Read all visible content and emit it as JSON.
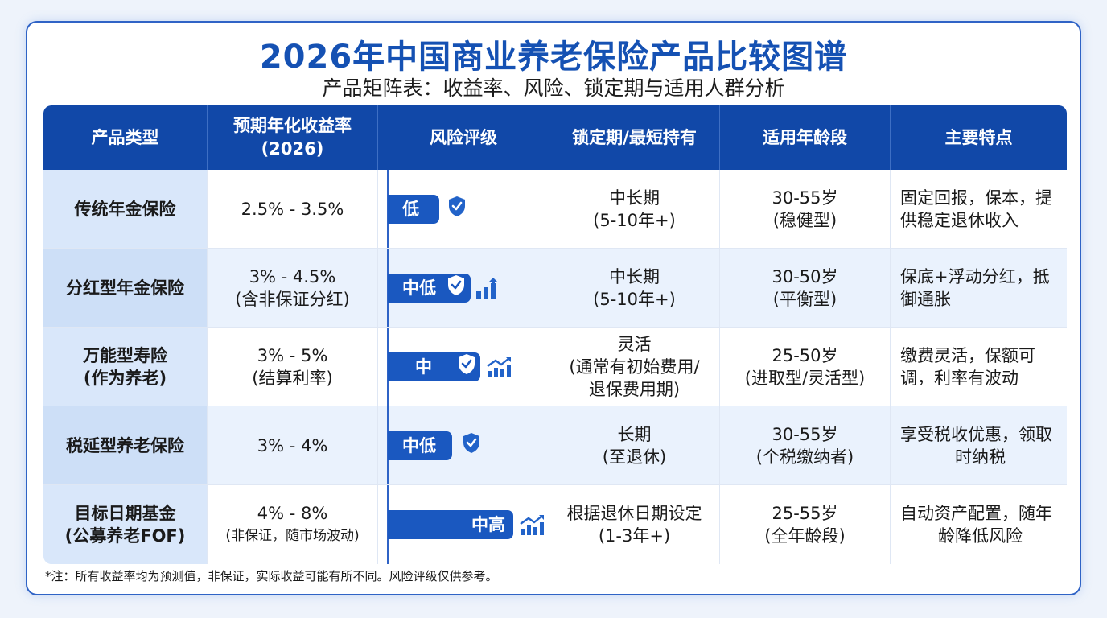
{
  "title": "2026年中国商业养老保险产品比较图谱",
  "subtitle": "产品矩阵表：收益率、风险、锁定期与适用人群分析",
  "headers": {
    "type": "产品类型",
    "yield_1": "预期年化收益率",
    "yield_2": "(2026)",
    "risk": "风险评级",
    "lock": "锁定期/最短持有",
    "age": "适用年龄段",
    "feat": "主要特点"
  },
  "rows": [
    {
      "type_1": "传统年金保险",
      "yield_1": "2.5% - 3.5%",
      "risk": "低",
      "risk_level": 1,
      "lock_1": "中长期",
      "lock_2": "(5-10年+)",
      "age_1": "30-55岁",
      "age_2": "(稳健型)",
      "feat_1": "固定回报，保本，提",
      "feat_2": "供稳定退休收入"
    },
    {
      "type_1": "分红型年金保险",
      "yield_1": "3% - 4.5%",
      "yield_2": "(含非保证分红)",
      "risk": "中低",
      "risk_level": 2,
      "lock_1": "中长期",
      "lock_2": "(5-10年+)",
      "age_1": "30-50岁",
      "age_2": "(平衡型)",
      "feat_1": "保底+浮动分红，抵",
      "feat_2": "御通胀"
    },
    {
      "type_1": "万能型寿险",
      "type_2": "(作为养老)",
      "yield_1": "3% - 5%",
      "yield_2": "(结算利率)",
      "risk": "中",
      "risk_level": 3,
      "lock_1": "灵活",
      "lock_2": "(通常有初始费用/",
      "lock_3": "退保费用期)",
      "age_1": "25-50岁",
      "age_2": "(进取型/灵活型)",
      "feat_1": "缴费灵活，保额可",
      "feat_2": "调，利率有波动"
    },
    {
      "type_1": "税延型养老保险",
      "yield_1": "3% - 4%",
      "risk": "中低",
      "risk_level": 2,
      "lock_1": "长期",
      "lock_2": "(至退休)",
      "age_1": "30-55岁",
      "age_2": "(个税缴纳者)",
      "feat_1": "享受税收优惠，领取",
      "feat_2": "时纳税"
    },
    {
      "type_1": "目标日期基金",
      "type_2": "(公募养老FOF)",
      "yield_1": "4% - 8%",
      "yield_2": "(非保证，随市场波动)",
      "risk": "中高",
      "risk_level": 4,
      "lock_1": "根据退休日期设定",
      "lock_2": "(1-3年+)",
      "age_1": "25-55岁",
      "age_2": "(全年龄段)",
      "feat_1": "自动资产配置，随年",
      "feat_2": "龄降低风险"
    }
  ],
  "note": "*注：所有收益率均为预测值，非保证，实际收益可能有所不同。风险评级仅供参考。",
  "colors": {
    "header_bg": "#1148a8",
    "title": "#1551b3",
    "bar": "#1a58c0"
  }
}
